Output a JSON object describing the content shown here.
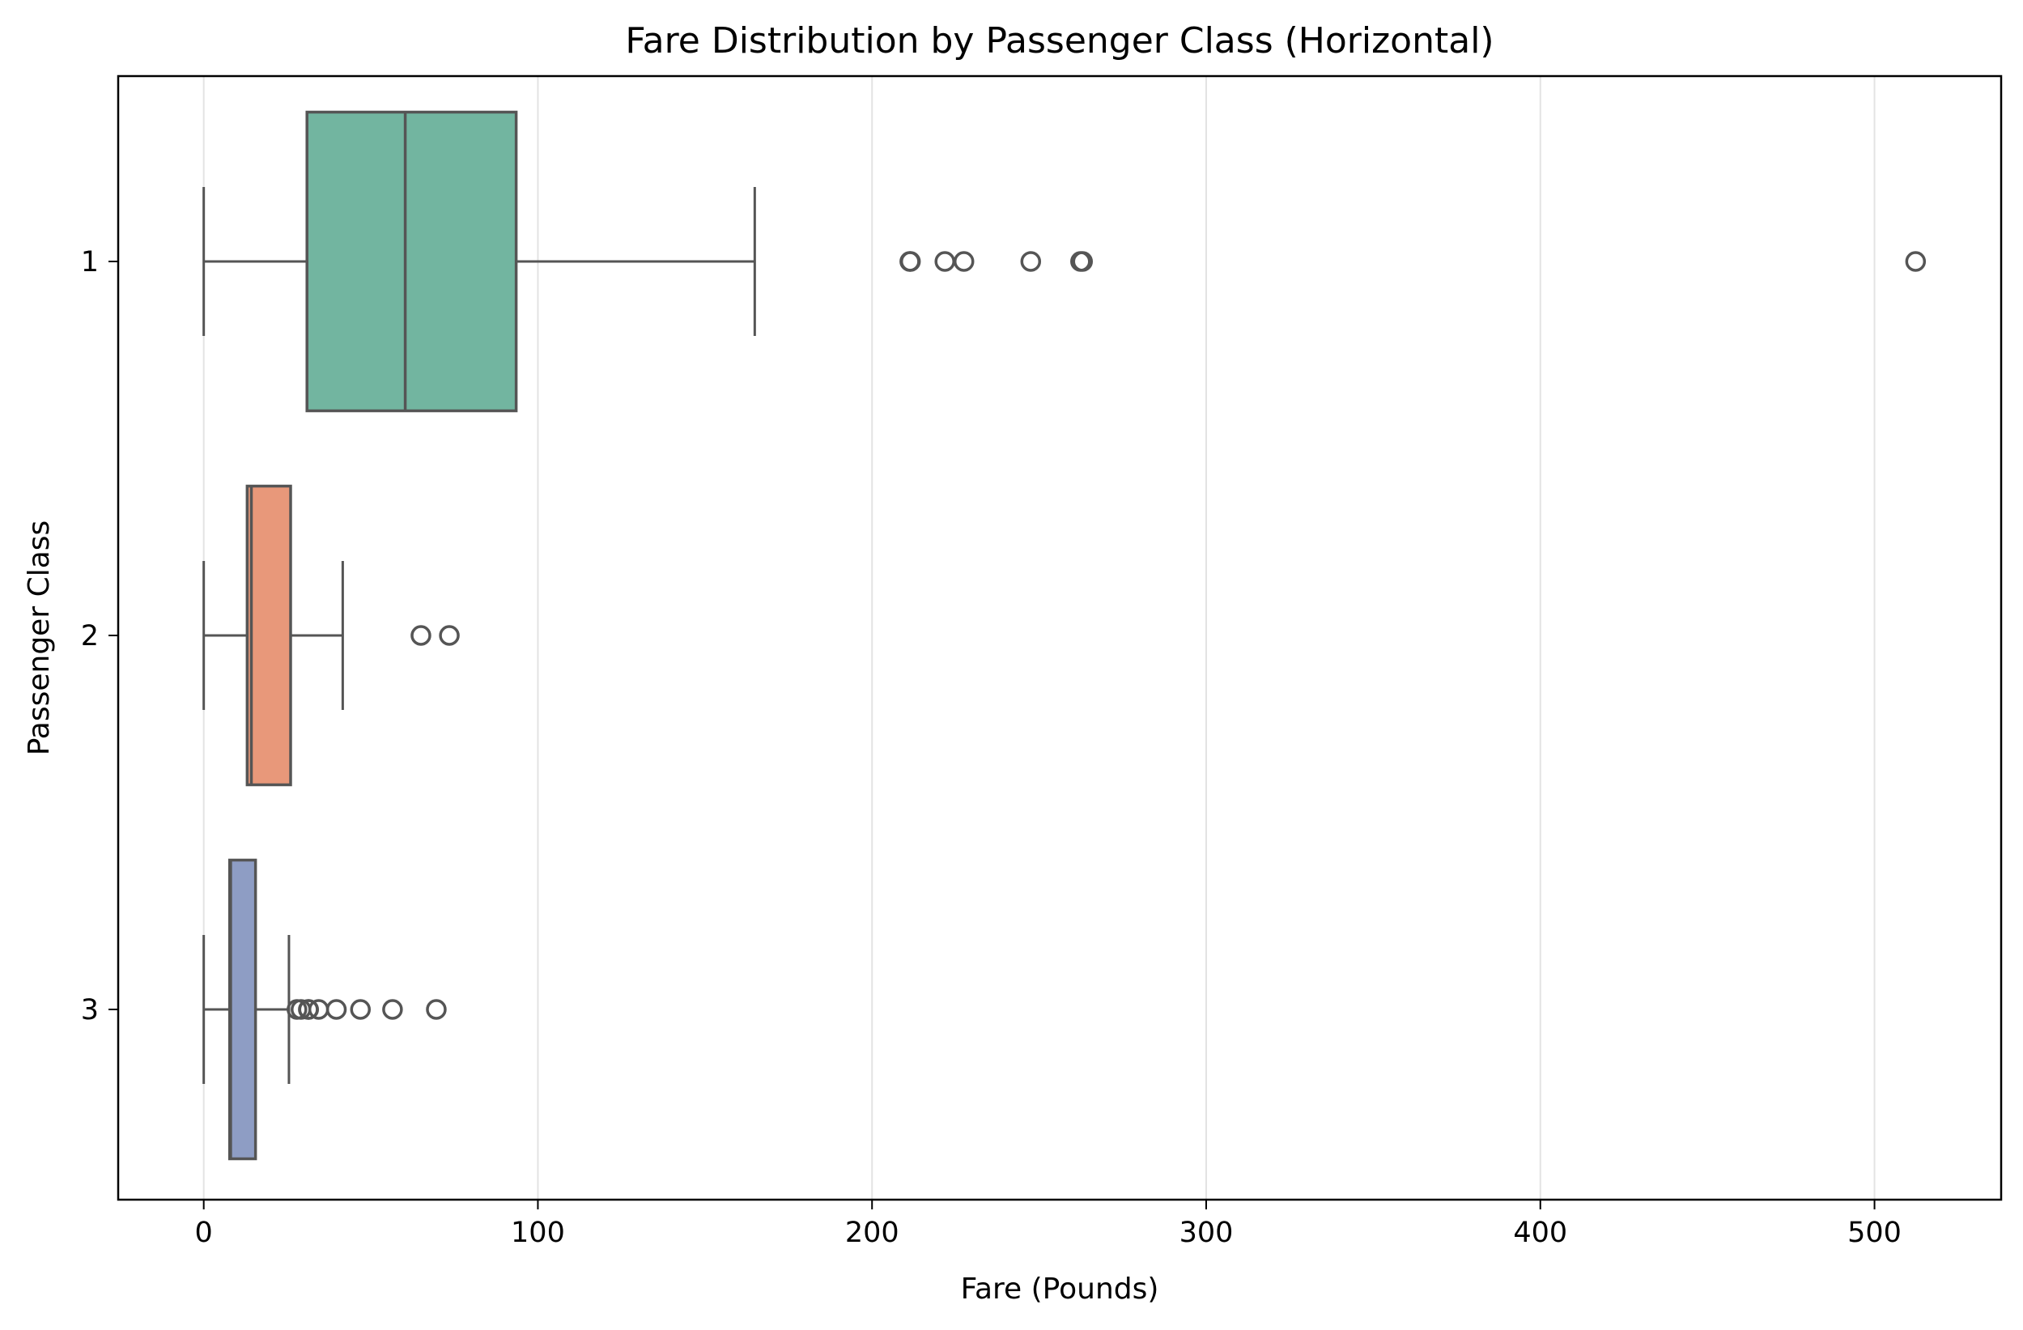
{
  "chart_data": {
    "type": "boxplot",
    "orientation": "horizontal",
    "title": "Fare Distribution by Passenger Class (Horizontal)",
    "xlabel": "Fare (Pounds)",
    "ylabel": "Passenger Class",
    "xlim": [
      -25.6,
      537.9
    ],
    "xticks": [
      0,
      100,
      200,
      300,
      400,
      500
    ],
    "grid": "x-axis only",
    "legend": "none",
    "categories": [
      "1",
      "2",
      "3"
    ],
    "series": [
      {
        "category": "1",
        "color": "#72b5a0",
        "whisker_low": 0,
        "q1": 30.9,
        "median": 60.3,
        "q3": 93.5,
        "whisker_high": 164.9,
        "outliers": [
          211.3,
          211.5,
          221.8,
          227.5,
          247.5,
          262.4,
          263.0,
          512.3
        ]
      },
      {
        "category": "2",
        "color": "#e8987a",
        "whisker_low": 0,
        "q1": 13.0,
        "median": 14.25,
        "q3": 26.0,
        "whisker_high": 41.6,
        "outliers": [
          65.0,
          73.5
        ]
      },
      {
        "category": "3",
        "color": "#8e9dc4",
        "whisker_low": 0,
        "q1": 7.75,
        "median": 8.05,
        "q3": 15.5,
        "whisker_high": 25.5,
        "outliers": [
          27.9,
          29.1,
          31.3,
          31.4,
          34.4,
          39.7,
          46.9,
          56.5,
          69.6
        ]
      }
    ]
  }
}
